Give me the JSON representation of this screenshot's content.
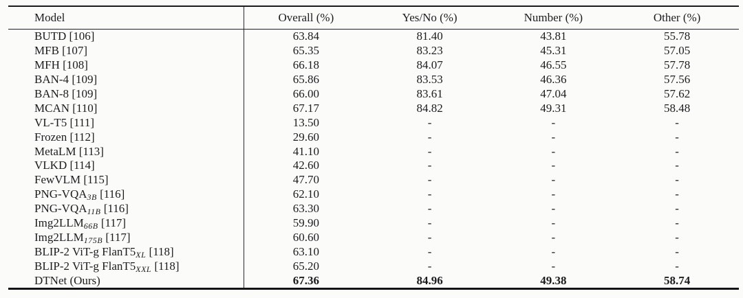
{
  "table": {
    "columns": [
      "Model",
      "Overall (%)",
      "Yes/No (%)",
      "Number (%)",
      "Other (%)"
    ],
    "rows": [
      {
        "name": "BUTD",
        "sub": "",
        "cite": "[106]",
        "overall": "63.84",
        "yes_no": "81.40",
        "number": "43.81",
        "other": "55.78",
        "bold": false
      },
      {
        "name": "MFB",
        "sub": "",
        "cite": "[107]",
        "overall": "65.35",
        "yes_no": "83.23",
        "number": "45.31",
        "other": "57.05",
        "bold": false
      },
      {
        "name": "MFH",
        "sub": "",
        "cite": "[108]",
        "overall": "66.18",
        "yes_no": "84.07",
        "number": "46.55",
        "other": "57.78",
        "bold": false
      },
      {
        "name": "BAN-4",
        "sub": "",
        "cite": "[109]",
        "overall": "65.86",
        "yes_no": "83.53",
        "number": "46.36",
        "other": "57.56",
        "bold": false
      },
      {
        "name": "BAN-8",
        "sub": "",
        "cite": "[109]",
        "overall": "66.00",
        "yes_no": "83.61",
        "number": "47.04",
        "other": "57.62",
        "bold": false
      },
      {
        "name": "MCAN",
        "sub": "",
        "cite": "[110]",
        "overall": "67.17",
        "yes_no": "84.82",
        "number": "49.31",
        "other": "58.48",
        "bold": false
      },
      {
        "name": "VL-T5",
        "sub": "",
        "cite": "[111]",
        "overall": "13.50",
        "yes_no": "-",
        "number": "-",
        "other": "-",
        "bold": false
      },
      {
        "name": "Frozen",
        "sub": "",
        "cite": "[112]",
        "overall": "29.60",
        "yes_no": "-",
        "number": "-",
        "other": "-",
        "bold": false
      },
      {
        "name": "MetaLM",
        "sub": "",
        "cite": "[113]",
        "overall": "41.10",
        "yes_no": "-",
        "number": "-",
        "other": "-",
        "bold": false
      },
      {
        "name": "VLKD",
        "sub": "",
        "cite": "[114]",
        "overall": "42.60",
        "yes_no": "-",
        "number": "-",
        "other": "-",
        "bold": false
      },
      {
        "name": "FewVLM",
        "sub": "",
        "cite": "[115]",
        "overall": "47.70",
        "yes_no": "-",
        "number": "-",
        "other": "-",
        "bold": false
      },
      {
        "name": "PNG-VQA",
        "sub": "3B",
        "cite": "[116]",
        "overall": "62.10",
        "yes_no": "-",
        "number": "-",
        "other": "-",
        "bold": false
      },
      {
        "name": "PNG-VQA",
        "sub": "11B",
        "cite": "[116]",
        "overall": "63.30",
        "yes_no": "-",
        "number": "-",
        "other": "-",
        "bold": false
      },
      {
        "name": "Img2LLM",
        "sub": "66B",
        "cite": "[117]",
        "overall": "59.90",
        "yes_no": "-",
        "number": "-",
        "other": "-",
        "bold": false
      },
      {
        "name": "Img2LLM",
        "sub": "175B",
        "cite": "[117]",
        "overall": "60.60",
        "yes_no": "-",
        "number": "-",
        "other": "-",
        "bold": false
      },
      {
        "name": "BLIP-2 ViT-g FlanT5",
        "sub": "XL",
        "cite": "[118]",
        "overall": "63.10",
        "yes_no": "-",
        "number": "-",
        "other": "-",
        "bold": false
      },
      {
        "name": "BLIP-2 ViT-g FlanT5",
        "sub": "XXL",
        "cite": "[118]",
        "overall": "65.20",
        "yes_no": "-",
        "number": "-",
        "other": "-",
        "bold": false
      },
      {
        "name": "DTNet (Ours)",
        "sub": "",
        "cite": "",
        "overall": "67.36",
        "yes_no": "84.96",
        "number": "49.38",
        "other": "58.74",
        "bold": true
      }
    ]
  }
}
